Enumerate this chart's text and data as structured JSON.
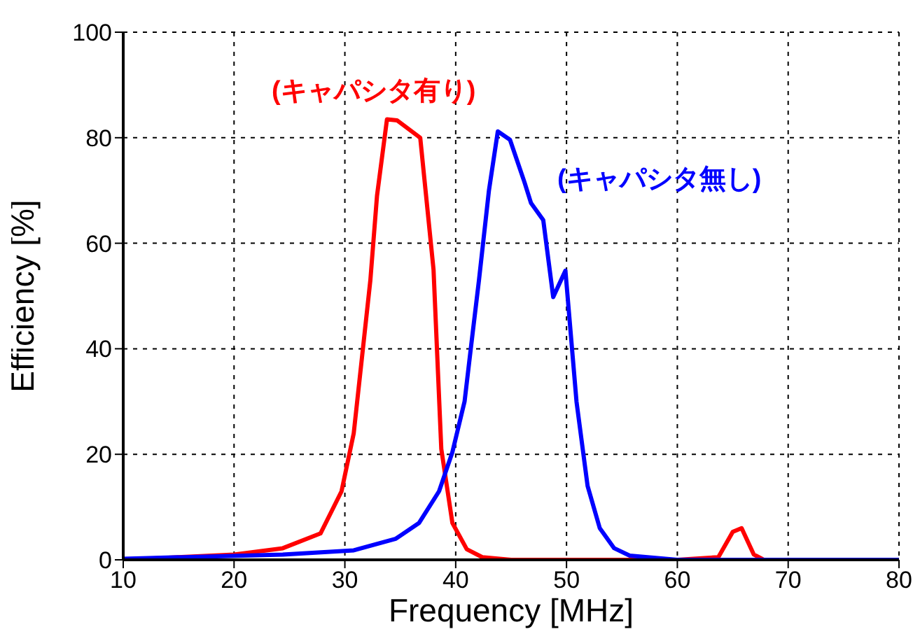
{
  "chart_data": {
    "type": "line",
    "xlabel": "Frequency [MHz]",
    "ylabel": "Efficiency [%]",
    "xlim": [
      10,
      80
    ],
    "ylim": [
      0,
      100
    ],
    "xticks": [
      10,
      20,
      30,
      40,
      50,
      60,
      70,
      80
    ],
    "yticks": [
      0,
      20,
      40,
      60,
      80,
      100
    ],
    "grid": true,
    "legend": false,
    "marker": "none",
    "line_style": "solid",
    "series": [
      {
        "name": "(キャパシタ有り)",
        "color": "#ff0000",
        "x": [
          10,
          20,
          24.4,
          27.8,
          29.7,
          30.8,
          32.3,
          32.9,
          33.8,
          34.7,
          36.8,
          38.0,
          38.7,
          39.7,
          41.0,
          42.4,
          45,
          50,
          55,
          60,
          63.7,
          65.0,
          65.8,
          66.9,
          67.8,
          70,
          80
        ],
        "values": [
          0,
          1,
          2.2,
          5,
          13,
          24,
          53,
          69,
          83.5,
          83.3,
          80,
          55,
          21,
          7,
          2,
          0.5,
          0,
          0,
          0,
          0,
          0.5,
          5.3,
          6,
          1,
          0,
          0,
          0
        ]
      },
      {
        "name": "(キャパシタ無し)",
        "color": "#0000ff",
        "x": [
          10,
          24.4,
          30.8,
          34.6,
          36.7,
          38.5,
          39.7,
          40.8,
          41.4,
          42.1,
          43.0,
          43.8,
          44.9,
          46.2,
          46.8,
          47.9,
          48.8,
          49.9,
          50.9,
          51.9,
          53.0,
          54.3,
          55.7,
          60,
          70,
          80
        ],
        "values": [
          0.2,
          1,
          1.8,
          4,
          7,
          13,
          20.4,
          30,
          40.7,
          53,
          70,
          81.2,
          79.6,
          71.6,
          67.6,
          64.4,
          49.8,
          54.8,
          30,
          14,
          6,
          2.2,
          0.8,
          0,
          0,
          0
        ]
      }
    ]
  }
}
